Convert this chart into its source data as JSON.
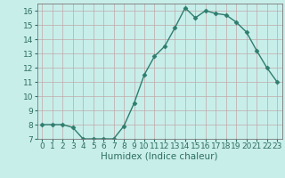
{
  "x": [
    0,
    1,
    2,
    3,
    4,
    5,
    6,
    7,
    8,
    9,
    10,
    11,
    12,
    13,
    14,
    15,
    16,
    17,
    18,
    19,
    20,
    21,
    22,
    23
  ],
  "y": [
    8,
    8,
    8,
    7.8,
    7,
    7,
    7,
    7,
    7.9,
    9.5,
    11.5,
    12.8,
    13.5,
    14.8,
    16.2,
    15.5,
    16.0,
    15.8,
    15.7,
    15.2,
    14.5,
    13.2,
    12.0,
    11.0
  ],
  "line_color": "#2e7d6e",
  "marker": "D",
  "marker_size": 2.5,
  "background_color": "#c8eeea",
  "grid_color": "#c0a8a8",
  "xlabel": "Humidex (Indice chaleur)",
  "ylim": [
    7,
    16.5
  ],
  "xlim": [
    -0.5,
    23.5
  ],
  "yticks": [
    7,
    8,
    9,
    10,
    11,
    12,
    13,
    14,
    15,
    16
  ],
  "xticks": [
    0,
    1,
    2,
    3,
    4,
    5,
    6,
    7,
    8,
    9,
    10,
    11,
    12,
    13,
    14,
    15,
    16,
    17,
    18,
    19,
    20,
    21,
    22,
    23
  ],
  "tick_fontsize": 6.5,
  "xlabel_fontsize": 7.5,
  "label_color": "#2e6e60"
}
